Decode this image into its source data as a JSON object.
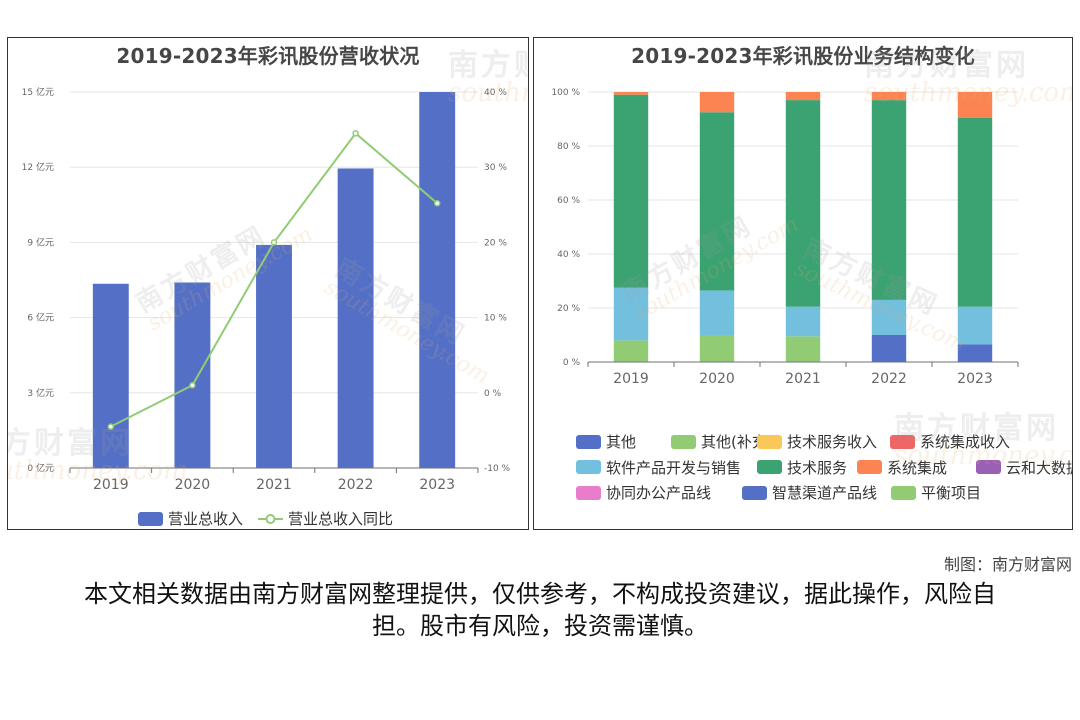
{
  "credit": "制图：南方财富网",
  "disclaimer": "本文相关数据由南方财富网整理提供，仅供参考，不构成投资建议，据此操作，风险自担。股市有风险，投资需谨慎。",
  "watermark": {
    "cn": "南方财富网",
    "en": "southmoney.com"
  },
  "chart_data": [
    {
      "type": "bar",
      "title": "2019-2023年彩讯股份营收状况",
      "categories": [
        "2019",
        "2020",
        "2021",
        "2022",
        "2023"
      ],
      "series": [
        {
          "name": "营业总收入",
          "type": "bar",
          "axis": "left",
          "color": "#5470c6",
          "values": [
            7.35,
            7.4,
            8.9,
            11.95,
            15.0
          ]
        },
        {
          "name": "营业总收入同比",
          "type": "line",
          "axis": "right",
          "color": "#91cc75",
          "values": [
            -4.5,
            1.0,
            20.0,
            34.5,
            25.2
          ]
        }
      ],
      "y_left": {
        "ticks": [
          "0 亿元",
          "3 亿元",
          "6 亿元",
          "9 亿元",
          "12 亿元",
          "15 亿元"
        ],
        "ylim": [
          0,
          15
        ]
      },
      "y_right": {
        "ticks": [
          "-10 %",
          "0 %",
          "10 %",
          "20 %",
          "30 %",
          "40 %"
        ],
        "ylim": [
          -10,
          40
        ]
      },
      "grid": true,
      "legend_position": "bottom"
    },
    {
      "type": "bar",
      "stacked": true,
      "title": "2019-2023年彩讯股份业务结构变化",
      "categories": [
        "2019",
        "2020",
        "2021",
        "2022",
        "2023"
      ],
      "series": [
        {
          "name": "其他",
          "color": "#5470c6",
          "values": [
            0,
            0,
            0,
            10,
            6.5
          ]
        },
        {
          "name": "其他(补充)",
          "color": "#91cc75",
          "values": [
            8,
            10,
            9.5,
            0,
            0
          ]
        },
        {
          "name": "技术服务收入",
          "color": "#fac858",
          "values": [
            0,
            0,
            0,
            0,
            0
          ]
        },
        {
          "name": "系统集成收入",
          "color": "#ee6666",
          "values": [
            0,
            0,
            0,
            0,
            0
          ]
        },
        {
          "name": "软件产品开发与销售",
          "color": "#73c0de",
          "values": [
            19.5,
            16.5,
            11,
            13,
            14
          ]
        },
        {
          "name": "技术服务",
          "color": "#3ba272",
          "values": [
            71.5,
            66,
            76.5,
            74,
            70
          ]
        },
        {
          "name": "系统集成",
          "color": "#fc8452",
          "values": [
            1,
            7.5,
            3,
            3,
            9.5
          ]
        },
        {
          "name": "云和大数据产品线",
          "color": "#9a60b4",
          "values": [
            0,
            0,
            0,
            0,
            0
          ]
        },
        {
          "name": "协同办公产品线",
          "color": "#ea7ccc",
          "values": [
            0,
            0,
            0,
            0,
            0
          ]
        },
        {
          "name": "智慧渠道产品线",
          "color": "#5470c6",
          "values": [
            0,
            0,
            0,
            0,
            0
          ]
        },
        {
          "name": "平衡项目",
          "color": "#91cc75",
          "values": [
            0,
            0,
            0,
            0,
            0
          ]
        }
      ],
      "y_ticks": [
        "0 %",
        "20 %",
        "40 %",
        "60 %",
        "80 %",
        "100 %"
      ],
      "ylim": [
        0,
        100
      ],
      "grid": true,
      "legend_position": "bottom"
    }
  ]
}
